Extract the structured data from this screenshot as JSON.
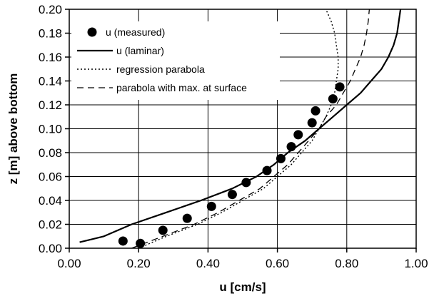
{
  "chart_data": {
    "type": "scatter",
    "xlabel": "u [cm/s]",
    "ylabel": "z [m] above bottom",
    "xlim": [
      0.0,
      1.0
    ],
    "ylim": [
      0.0,
      0.2
    ],
    "x_ticks": [
      "0.00",
      "0.20",
      "0.40",
      "0.60",
      "0.80",
      "1.00"
    ],
    "y_ticks": [
      "0.00",
      "0.02",
      "0.04",
      "0.06",
      "0.08",
      "0.10",
      "0.12",
      "0.14",
      "0.16",
      "0.18",
      "0.20"
    ],
    "grid": true,
    "legend_position": "top-left",
    "series": [
      {
        "name": "u (measured)",
        "style": "markers",
        "color": "#000000",
        "points": [
          [
            0.155,
            0.006
          ],
          [
            0.205,
            0.004
          ],
          [
            0.27,
            0.015
          ],
          [
            0.34,
            0.025
          ],
          [
            0.41,
            0.035
          ],
          [
            0.47,
            0.045
          ],
          [
            0.51,
            0.055
          ],
          [
            0.57,
            0.065
          ],
          [
            0.61,
            0.075
          ],
          [
            0.64,
            0.085
          ],
          [
            0.66,
            0.095
          ],
          [
            0.7,
            0.105
          ],
          [
            0.71,
            0.115
          ],
          [
            0.76,
            0.125
          ],
          [
            0.78,
            0.135
          ]
        ]
      },
      {
        "name": "u (laminar)",
        "style": "solid",
        "color": "#000000",
        "points": [
          [
            0.03,
            0.005
          ],
          [
            0.1,
            0.01
          ],
          [
            0.18,
            0.02
          ],
          [
            0.28,
            0.03
          ],
          [
            0.38,
            0.04
          ],
          [
            0.47,
            0.05
          ],
          [
            0.54,
            0.06
          ],
          [
            0.59,
            0.07
          ],
          [
            0.63,
            0.08
          ],
          [
            0.68,
            0.09
          ],
          [
            0.72,
            0.1
          ],
          [
            0.76,
            0.11
          ],
          [
            0.8,
            0.12
          ],
          [
            0.84,
            0.13
          ],
          [
            0.87,
            0.14
          ],
          [
            0.9,
            0.15
          ],
          [
            0.92,
            0.16
          ],
          [
            0.935,
            0.17
          ],
          [
            0.945,
            0.18
          ],
          [
            0.95,
            0.19
          ],
          [
            0.955,
            0.2
          ]
        ]
      },
      {
        "name": "regression parabola",
        "style": "dotted",
        "color": "#000000",
        "points": [
          [
            0.2,
            0.0
          ],
          [
            0.28,
            0.01
          ],
          [
            0.37,
            0.02
          ],
          [
            0.44,
            0.03
          ],
          [
            0.5,
            0.04
          ],
          [
            0.56,
            0.05
          ],
          [
            0.6,
            0.06
          ],
          [
            0.64,
            0.07
          ],
          [
            0.67,
            0.08
          ],
          [
            0.7,
            0.09
          ],
          [
            0.72,
            0.1
          ],
          [
            0.74,
            0.11
          ],
          [
            0.755,
            0.12
          ],
          [
            0.765,
            0.13
          ],
          [
            0.77,
            0.14
          ],
          [
            0.775,
            0.15
          ],
          [
            0.775,
            0.16
          ],
          [
            0.77,
            0.17
          ],
          [
            0.765,
            0.18
          ],
          [
            0.755,
            0.19
          ],
          [
            0.74,
            0.2
          ]
        ]
      },
      {
        "name": "parabola with max. at surface",
        "style": "dashed",
        "color": "#000000",
        "points": [
          [
            0.18,
            0.0
          ],
          [
            0.27,
            0.01
          ],
          [
            0.36,
            0.02
          ],
          [
            0.43,
            0.03
          ],
          [
            0.49,
            0.04
          ],
          [
            0.55,
            0.05
          ],
          [
            0.59,
            0.06
          ],
          [
            0.63,
            0.07
          ],
          [
            0.66,
            0.08
          ],
          [
            0.69,
            0.09
          ],
          [
            0.72,
            0.1
          ],
          [
            0.74,
            0.11
          ],
          [
            0.77,
            0.12
          ],
          [
            0.79,
            0.13
          ],
          [
            0.81,
            0.14
          ],
          [
            0.825,
            0.15
          ],
          [
            0.84,
            0.16
          ],
          [
            0.85,
            0.17
          ],
          [
            0.857,
            0.18
          ],
          [
            0.862,
            0.19
          ],
          [
            0.865,
            0.2
          ]
        ]
      }
    ]
  }
}
